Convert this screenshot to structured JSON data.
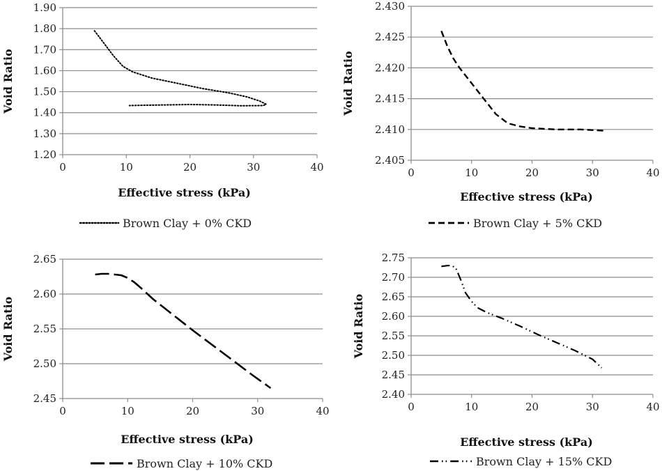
{
  "chart_data": [
    {
      "type": "line",
      "xlabel": "Effective stress (kPa)",
      "ylabel": "Void Ratio",
      "xlim": [
        0,
        40
      ],
      "xticks": [
        "0",
        "10",
        "20",
        "30",
        "40"
      ],
      "ylim": [
        1.2,
        1.9
      ],
      "yticks": [
        "1.20",
        "1.30",
        "1.40",
        "1.50",
        "1.60",
        "1.70",
        "1.80",
        "1.90"
      ],
      "grid": "horizontal",
      "legend": "bottom",
      "series": [
        {
          "name": "Brown Clay + 0% CKD",
          "style": "dotted",
          "x": [
            5,
            6.5,
            8,
            9.5,
            11,
            14,
            18,
            22,
            26,
            29,
            31,
            32,
            31.5,
            28,
            24,
            20,
            16,
            12,
            10.5
          ],
          "y": [
            1.79,
            1.73,
            1.67,
            1.62,
            1.594,
            1.565,
            1.54,
            1.515,
            1.495,
            1.475,
            1.455,
            1.44,
            1.434,
            1.433,
            1.437,
            1.439,
            1.437,
            1.435,
            1.434
          ]
        }
      ]
    },
    {
      "type": "line",
      "xlabel": "Effective stress (kPa)",
      "ylabel": "Void Ratio",
      "xlim": [
        0,
        40
      ],
      "xticks": [
        "0",
        "10",
        "20",
        "30",
        "40"
      ],
      "ylim": [
        2.405,
        2.43
      ],
      "yticks": [
        "2.405",
        "2.410",
        "2.415",
        "2.420",
        "2.425",
        "2.430"
      ],
      "grid": "horizontal",
      "legend": "bottom",
      "series": [
        {
          "name": "Brown Clay + 5% CKD",
          "style": "dashed",
          "x": [
            5,
            6,
            7,
            8,
            10,
            12,
            14,
            16,
            18,
            20,
            24,
            28,
            32
          ],
          "y": [
            2.426,
            2.4235,
            2.4215,
            2.42,
            2.4175,
            2.415,
            2.4125,
            2.411,
            2.4105,
            2.4102,
            2.41,
            2.41,
            2.4098
          ]
        }
      ]
    },
    {
      "type": "line",
      "xlabel": "Effective stress (kPa)",
      "ylabel": "Void Ratio",
      "xlim": [
        0,
        40
      ],
      "xticks": [
        "0",
        "10",
        "20",
        "30",
        "40"
      ],
      "ylim": [
        2.45,
        2.65
      ],
      "yticks": [
        "2.45",
        "2.50",
        "2.55",
        "2.60",
        "2.65"
      ],
      "grid": "horizontal",
      "legend": "bottom",
      "series": [
        {
          "name": "Brown Clay + 10% CKD",
          "style": "long-dash",
          "x": [
            5,
            6,
            7,
            8,
            9,
            10,
            11,
            12,
            14,
            17,
            20,
            23,
            26,
            29,
            32
          ],
          "y": [
            2.628,
            2.629,
            2.629,
            2.628,
            2.627,
            2.623,
            2.617,
            2.609,
            2.592,
            2.57,
            2.548,
            2.527,
            2.506,
            2.485,
            2.465
          ]
        }
      ]
    },
    {
      "type": "line",
      "xlabel": "Effective stress (kPa)",
      "ylabel": "Void Ratio",
      "xlim": [
        0,
        40
      ],
      "xticks": [
        "0",
        "10",
        "20",
        "30",
        "40"
      ],
      "ylim": [
        2.4,
        2.75
      ],
      "yticks": [
        "2.40",
        "2.45",
        "2.50",
        "2.55",
        "2.60",
        "2.65",
        "2.70",
        "2.75"
      ],
      "grid": "horizontal",
      "legend": "bottom",
      "series": [
        {
          "name": "Brown Clay + 15% CKD",
          "style": "dash-dot-dot",
          "x": [
            5,
            6,
            6.8,
            7.5,
            8.3,
            9,
            10,
            11,
            12.5,
            15,
            18,
            21,
            24,
            27,
            30,
            31.5
          ],
          "y": [
            2.728,
            2.73,
            2.73,
            2.72,
            2.69,
            2.66,
            2.638,
            2.622,
            2.61,
            2.595,
            2.575,
            2.553,
            2.533,
            2.513,
            2.49,
            2.468
          ]
        }
      ]
    }
  ]
}
